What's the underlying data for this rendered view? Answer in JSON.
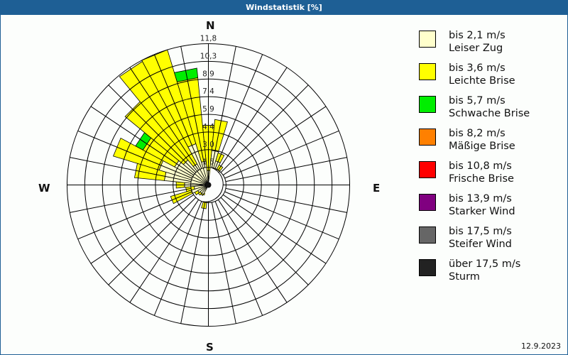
{
  "title": "Windstatistik [%]",
  "date": "12.9.2023",
  "compass": {
    "N": "N",
    "E": "E",
    "S": "S",
    "W": "W"
  },
  "legend": [
    {
      "range": "bis 2,1 m/s",
      "name": "Leiser Zug",
      "color": "#ffffcc"
    },
    {
      "range": "bis 3,6 m/s",
      "name": "Leichte Brise",
      "color": "#ffff00"
    },
    {
      "range": "bis 5,7 m/s",
      "name": "Schwache Brise",
      "color": "#00ee00"
    },
    {
      "range": "bis 8,2 m/s",
      "name": "Mäßige Brise",
      "color": "#ff8000"
    },
    {
      "range": "bis 10,8 m/s",
      "name": "Frische Brise",
      "color": "#ff0000"
    },
    {
      "range": "bis 13,9 m/s",
      "name": "Starker Wind",
      "color": "#800080"
    },
    {
      "range": "bis 17,5 m/s",
      "name": "Steifer Wind",
      "color": "#666666"
    },
    {
      "range": "über 17,5 m/s",
      "name": "Sturm",
      "color": "#222222"
    }
  ],
  "chart_data": {
    "type": "polar-stacked-bar",
    "title": "Windstatistik [%]",
    "rings": [
      "1,5",
      "3,0",
      "4,4",
      "5,9",
      "7,4",
      "8,9",
      "10,3",
      "11,8"
    ],
    "rmax": 11.8,
    "sector_width_deg": 11.25,
    "series_names": [
      "Leiser Zug",
      "Leichte Brise",
      "Schwache Brise"
    ],
    "sectors": [
      {
        "dir": 0,
        "values": [
          1.2,
          3.8,
          0
        ]
      },
      {
        "dir": 11.25,
        "values": [
          2.9,
          2.6,
          0
        ]
      },
      {
        "dir": 22.5,
        "values": [
          2.1,
          0.7,
          0
        ]
      },
      {
        "dir": 33.75,
        "values": [
          1.5,
          0.4,
          0
        ]
      },
      {
        "dir": 45,
        "values": [
          1.0,
          0.2,
          0
        ]
      },
      {
        "dir": 56.25,
        "values": [
          0.6,
          0.1,
          0
        ]
      },
      {
        "dir": 67.5,
        "values": [
          0.4,
          0.1,
          0
        ]
      },
      {
        "dir": 78.75,
        "values": [
          0.3,
          0,
          0
        ]
      },
      {
        "dir": 90,
        "values": [
          0.3,
          0,
          0
        ]
      },
      {
        "dir": 101.25,
        "values": [
          0.2,
          0,
          0
        ]
      },
      {
        "dir": 112.5,
        "values": [
          0.2,
          0,
          0
        ]
      },
      {
        "dir": 123.75,
        "values": [
          0.2,
          0,
          0
        ]
      },
      {
        "dir": 135,
        "values": [
          0.2,
          0,
          0
        ]
      },
      {
        "dir": 146.25,
        "values": [
          0.3,
          0,
          0
        ]
      },
      {
        "dir": 157.5,
        "values": [
          0.3,
          0,
          0
        ]
      },
      {
        "dir": 168.75,
        "values": [
          0.4,
          0,
          0
        ]
      },
      {
        "dir": 180,
        "values": [
          0.6,
          0.1,
          0
        ]
      },
      {
        "dir": 191.25,
        "values": [
          1.4,
          0.6,
          0
        ]
      },
      {
        "dir": 202.5,
        "values": [
          0.8,
          0.1,
          0
        ]
      },
      {
        "dir": 213.75,
        "values": [
          0.9,
          0.1,
          0
        ]
      },
      {
        "dir": 225,
        "values": [
          0.9,
          0.2,
          0
        ]
      },
      {
        "dir": 236.25,
        "values": [
          1.0,
          0.3,
          0
        ]
      },
      {
        "dir": 247.5,
        "values": [
          1.5,
          1.8,
          0
        ]
      },
      {
        "dir": 258.75,
        "values": [
          1.2,
          0.7,
          0
        ]
      },
      {
        "dir": 270,
        "values": [
          2.0,
          0.7,
          0
        ]
      },
      {
        "dir": 281.25,
        "values": [
          3.7,
          2.5,
          0
        ]
      },
      {
        "dir": 292.5,
        "values": [
          4.3,
          4.0,
          0
        ]
      },
      {
        "dir": 303.75,
        "values": [
          3.2,
          3.0,
          0.7
        ]
      },
      {
        "dir": 315,
        "values": [
          2.7,
          6.3,
          0
        ]
      },
      {
        "dir": 326.25,
        "values": [
          2.0,
          9.7,
          0
        ]
      },
      {
        "dir": 337.5,
        "values": [
          3.6,
          8.2,
          0
        ]
      },
      {
        "dir": 348.75,
        "values": [
          2.0,
          7.0,
          0.8
        ]
      }
    ],
    "colors": [
      "#ffffcc",
      "#ffff00",
      "#00ee00"
    ]
  }
}
